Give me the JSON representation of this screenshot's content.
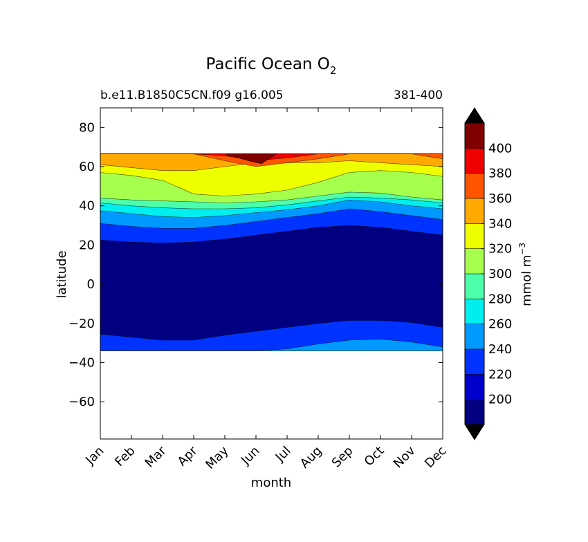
{
  "chart_data": {
    "type": "filled-contour",
    "title": "Pacific Ocean O",
    "title_subscript": "2",
    "subtitle_left": "b.e11.B1850C5CN.f09 g16.005",
    "subtitle_right": "381-400",
    "xlabel": "month",
    "ylabel": "latitude",
    "x_ticks": [
      "Jan",
      "Feb",
      "Mar",
      "Apr",
      "May",
      "Jun",
      "Jul",
      "Aug",
      "Sep",
      "Oct",
      "Nov",
      "Dec"
    ],
    "y_ticks": [
      80,
      60,
      40,
      20,
      0,
      -20,
      -40,
      -60
    ],
    "y_tick_labels": [
      "80",
      "60",
      "40",
      "20",
      "0",
      "−20",
      "−40",
      "−60"
    ],
    "xlim": [
      0,
      11
    ],
    "ylim": [
      -79,
      90
    ],
    "data_lat_range": [
      -34,
      66.5
    ],
    "colorbar": {
      "label": "mmol m",
      "label_superscript": "−3",
      "extend": "both",
      "levels": [
        180,
        200,
        220,
        240,
        260,
        280,
        300,
        320,
        340,
        360,
        380,
        400,
        420
      ],
      "tick_values": [
        200,
        220,
        240,
        260,
        280,
        300,
        320,
        340,
        360,
        380,
        400
      ],
      "tick_labels": [
        "200",
        "220",
        "240",
        "260",
        "280",
        "300",
        "320",
        "340",
        "360",
        "380",
        "400"
      ],
      "colors": [
        "#000080",
        "#0000cd",
        "#0033ff",
        "#0099ff",
        "#00eeee",
        "#4dffaa",
        "#a6ff4d",
        "#eeff00",
        "#ffaa00",
        "#ff5500",
        "#ee0000",
        "#800000"
      ],
      "under_color": "#000000",
      "over_color": "#000000"
    },
    "contour_boundaries": [
      {
        "level": 220,
        "south": [
          -25.5,
          -27,
          -28.5,
          -28.5,
          -26,
          -24,
          -22,
          -20,
          -18.5,
          -18.5,
          -19.5,
          -22
        ],
        "north": [
          22.5,
          21.5,
          21,
          21.5,
          23,
          25,
          27,
          29,
          30,
          29,
          27,
          25
        ]
      },
      {
        "level": 240,
        "south": [
          -34,
          -34,
          -34,
          -34,
          -34,
          -34,
          -33,
          -30.5,
          -28.5,
          -28,
          -29.5,
          -32
        ],
        "north": [
          31,
          29.5,
          28.5,
          28.5,
          30,
          32,
          34,
          36,
          38.5,
          37,
          35,
          33
        ]
      },
      {
        "level": 260,
        "north": [
          37.5,
          36,
          34.5,
          34,
          35,
          36.5,
          38,
          40,
          43,
          42,
          40,
          38.5
        ]
      },
      {
        "level": 280,
        "north": [
          41.5,
          40,
          39,
          38.5,
          38.5,
          39,
          40.5,
          42.5,
          44.5,
          44,
          43,
          41.5
        ]
      },
      {
        "level": 300,
        "north": [
          44,
          43,
          42.5,
          42,
          41.5,
          42,
          43,
          45,
          47,
          46.5,
          44.5,
          43
        ]
      },
      {
        "level": 320,
        "north": [
          57,
          55.5,
          53,
          46,
          45,
          46,
          48,
          52,
          57,
          58,
          57,
          55
        ]
      },
      {
        "level": 340,
        "north": [
          61,
          59.5,
          58,
          58,
          60,
          62,
          62,
          62,
          63,
          62,
          61,
          60
        ]
      },
      {
        "level": 360,
        "north": [
          66.5,
          66.5,
          66.5,
          66.5,
          63,
          60,
          62,
          64,
          66.5,
          66.5,
          66.5,
          64
        ]
      },
      {
        "level": 380,
        "north": [
          66.5,
          66.5,
          66.5,
          66.5,
          65.5,
          63,
          64.5,
          66.5,
          66.5,
          66.5,
          66.5,
          66.5
        ]
      }
    ],
    "maximum": {
      "month": 5,
      "lat": 64,
      "value": 420
    }
  }
}
